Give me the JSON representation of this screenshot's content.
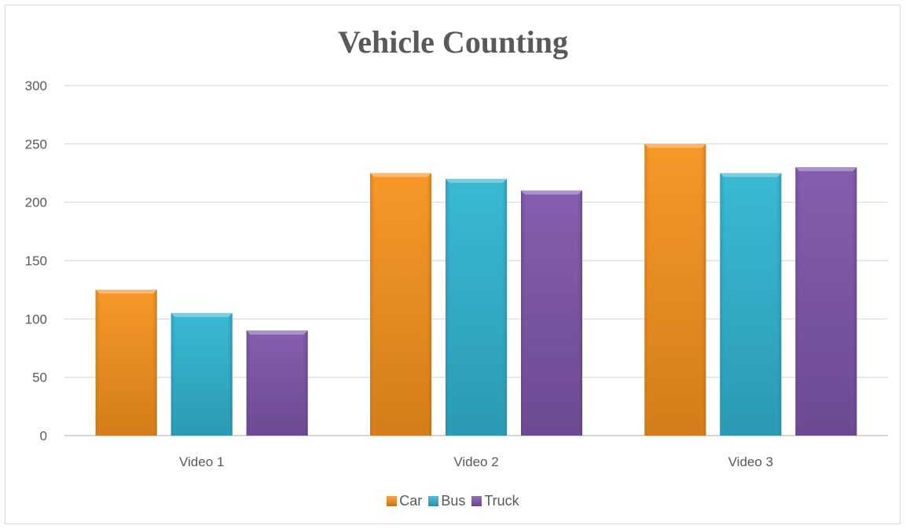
{
  "chart_data": {
    "type": "bar",
    "title": "Vehicle Counting",
    "xlabel": "",
    "ylabel": "",
    "categories": [
      "Video 1",
      "Video 2",
      "Video 3"
    ],
    "series": [
      {
        "name": "Car",
        "values": [
          125,
          225,
          250
        ],
        "color": "#f7931e"
      },
      {
        "name": "Bus",
        "values": [
          105,
          220,
          225
        ],
        "color": "#31b5d1"
      },
      {
        "name": "Truck",
        "values": [
          90,
          210,
          230
        ],
        "color": "#7f57aa"
      }
    ],
    "ylim": [
      0,
      300
    ],
    "yticks": [
      0,
      50,
      100,
      150,
      200,
      250,
      300
    ],
    "grid": true,
    "legend_position": "bottom"
  }
}
